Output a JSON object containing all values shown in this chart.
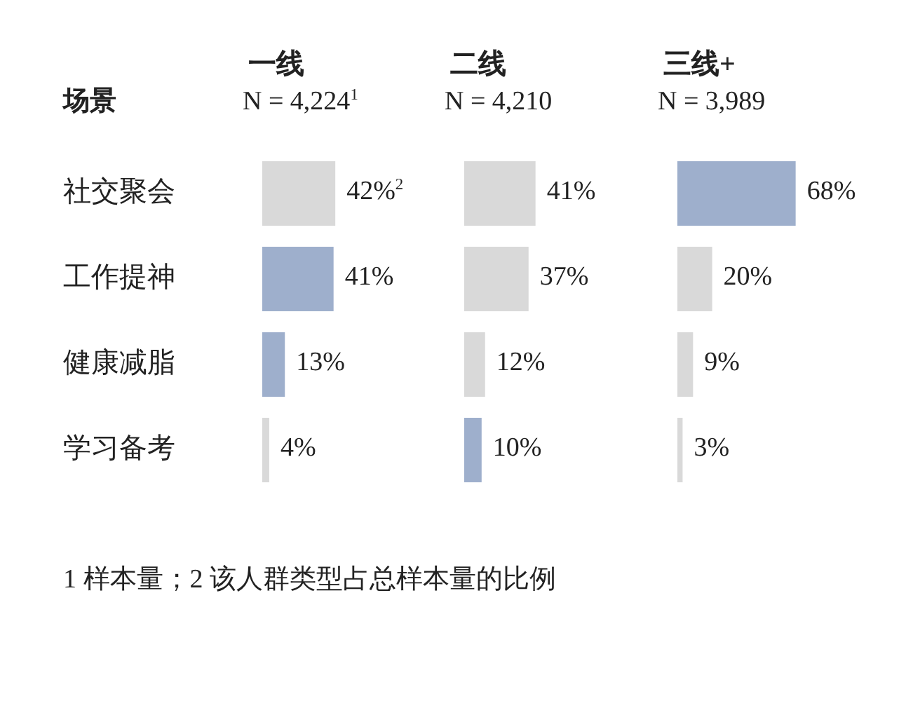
{
  "chart_data": [
    {
      "type": "bar",
      "orientation": "horizontal",
      "title": "一线",
      "subtitle": "N = 4,224$^{1}$",
      "ylabel": "场景",
      "categories": [
        "社交聚会",
        "工作提神",
        "健康减脂",
        "学习备考"
      ],
      "values": [
        42,
        41,
        13,
        4
      ],
      "colors": [
        "#d9d9d9",
        "#9eafcc",
        "#9eafcc",
        "#d9d9d9"
      ],
      "value_labels": [
        "42%$^{2}$",
        "41%",
        "13%",
        "4%"
      ],
      "annotations": [
        "1 样本量；2 该人群类型占总样本量的比例"
      ]
    },
    {
      "type": "bar",
      "orientation": "horizontal",
      "title": "二线",
      "subtitle": "N = 4,210",
      "values": [
        41,
        37,
        12,
        10
      ],
      "colors": [
        "#d9d9d9",
        "#d9d9d9",
        "#d9d9d9",
        "#9eafcc"
      ],
      "value_labels": [
        "41%",
        "37%",
        "12%",
        "10%"
      ]
    },
    {
      "type": "bar",
      "orientation": "horizontal",
      "title": "三线+",
      "subtitle": "N = 3,989",
      "values": [
        68,
        20,
        9,
        3
      ],
      "colors": [
        "#9eafcc",
        "#d9d9d9",
        "#d9d9d9",
        "#d9d9d9"
      ],
      "value_labels": [
        "68%",
        "20%",
        "9%",
        "3%"
      ]
    }
  ]
}
